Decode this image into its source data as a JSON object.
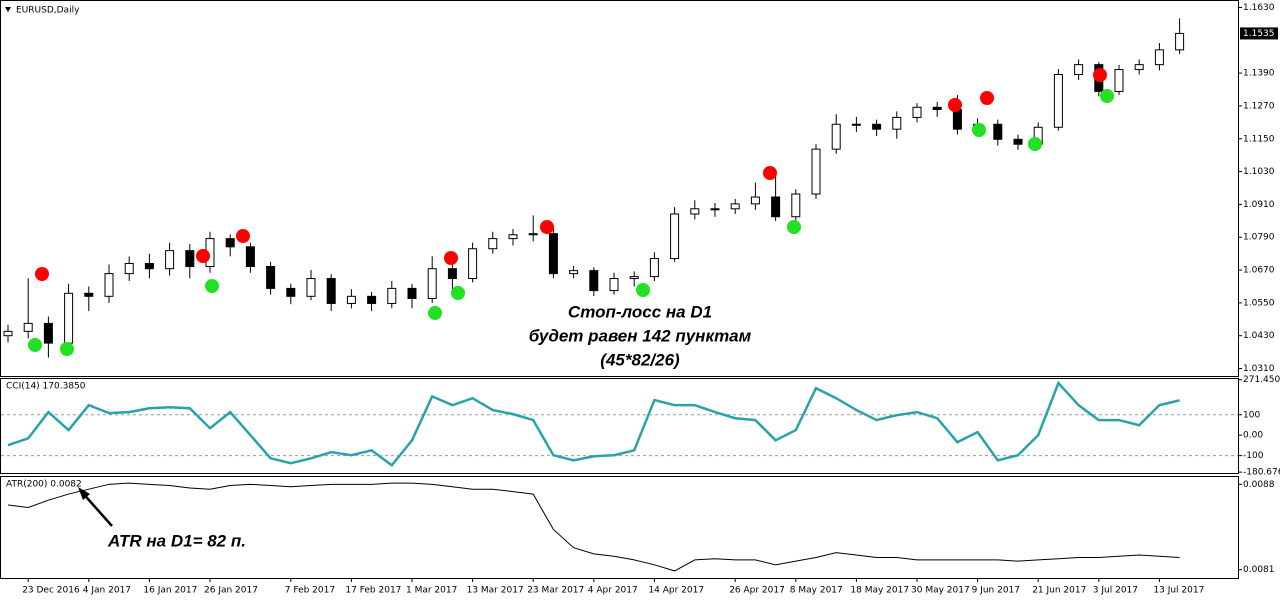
{
  "chart_data": [
    {
      "type": "candlestick",
      "title": "EURUSD,Daily",
      "categories": [
        null,
        "23 Dec 2016",
        null,
        null,
        "4 Jan 2017",
        null,
        null,
        "16 Jan 2017",
        null,
        null,
        "26 Jan 2017",
        null,
        null,
        null,
        "7 Feb 2017",
        null,
        null,
        "17 Feb 2017",
        null,
        null,
        "1 Mar 2017",
        null,
        null,
        "13 Mar 2017",
        null,
        null,
        "23 Mar 2017",
        null,
        null,
        "4 Apr 2017",
        null,
        null,
        "14 Apr 2017",
        null,
        null,
        null,
        "26 Apr 2017",
        null,
        null,
        "8 May 2017",
        null,
        null,
        "18 May 2017",
        null,
        null,
        "30 May 2017",
        null,
        null,
        "9 Jun 2017",
        null,
        null,
        "21 Jun 2017",
        null,
        null,
        "3 Jul 2017",
        null,
        null,
        "13 Jul 2017",
        null
      ],
      "open": [
        1.043,
        1.0446,
        1.0475,
        1.0403,
        1.0585,
        1.0574,
        1.0657,
        1.0694,
        1.0675,
        1.0741,
        1.0683,
        1.0785,
        1.0755,
        1.0683,
        1.0603,
        1.0574,
        1.0639,
        1.0548,
        1.0574,
        1.0548,
        1.0603,
        1.0566,
        1.0675,
        1.0639,
        1.0748,
        1.0785,
        1.0799,
        1.0803,
        1.0657,
        1.0668,
        1.0595,
        1.0639,
        1.0646,
        1.0712,
        1.0875,
        1.0894,
        1.0894,
        1.0912,
        1.0937,
        1.0865,
        1.0948,
        1.1112,
        1.1203,
        1.1203,
        1.1185,
        1.1228,
        1.1265,
        1.1257,
        1.1185,
        1.1203,
        1.1148,
        1.113,
        1.1192,
        1.1385,
        1.1421,
        1.1323,
        1.1403,
        1.1421,
        1.1475
      ],
      "high": [
        1.047,
        1.064,
        1.05,
        1.062,
        1.061,
        1.069,
        1.072,
        1.073,
        1.077,
        1.0765,
        1.081,
        1.08,
        1.077,
        1.07,
        1.062,
        1.067,
        1.0655,
        1.06,
        1.059,
        1.063,
        1.062,
        1.072,
        1.069,
        1.077,
        1.081,
        1.082,
        1.087,
        1.0825,
        1.0685,
        1.068,
        1.066,
        1.0665,
        1.0735,
        1.09,
        1.0925,
        1.0915,
        1.093,
        1.099,
        1.102,
        1.0965,
        1.113,
        1.124,
        1.123,
        1.122,
        1.125,
        1.128,
        1.1285,
        1.131,
        1.1225,
        1.122,
        1.1165,
        1.121,
        1.1405,
        1.144,
        1.143,
        1.142,
        1.144,
        1.15,
        1.159
      ],
      "low": [
        1.0405,
        1.042,
        1.035,
        1.039,
        1.052,
        1.055,
        1.063,
        1.064,
        1.065,
        1.064,
        1.066,
        1.072,
        1.066,
        1.058,
        1.0545,
        1.056,
        1.052,
        1.053,
        1.052,
        1.053,
        1.053,
        1.055,
        1.06,
        1.0625,
        1.073,
        1.076,
        1.0775,
        1.064,
        1.064,
        1.0575,
        1.058,
        1.061,
        1.063,
        1.07,
        1.0855,
        1.0865,
        1.0875,
        1.089,
        1.085,
        1.085,
        1.093,
        1.1095,
        1.1175,
        1.116,
        1.115,
        1.121,
        1.123,
        1.1165,
        1.1165,
        1.1125,
        1.111,
        1.1115,
        1.118,
        1.1365,
        1.1305,
        1.131,
        1.1385,
        1.14,
        1.146
      ],
      "close": [
        1.0446,
        1.0475,
        1.0403,
        1.0585,
        1.0574,
        1.0657,
        1.0694,
        1.0675,
        1.0741,
        1.0683,
        1.0785,
        1.0755,
        1.0683,
        1.0603,
        1.0574,
        1.0639,
        1.0548,
        1.0574,
        1.0548,
        1.0603,
        1.0566,
        1.0675,
        1.0639,
        1.0748,
        1.0785,
        1.0799,
        1.0803,
        1.0657,
        1.0668,
        1.0595,
        1.0639,
        1.0646,
        1.0712,
        1.0875,
        1.0894,
        1.0894,
        1.0912,
        1.0937,
        1.0865,
        1.0948,
        1.1112,
        1.1203,
        1.1203,
        1.1185,
        1.1228,
        1.1265,
        1.1257,
        1.1185,
        1.1203,
        1.1148,
        1.113,
        1.1192,
        1.1385,
        1.1421,
        1.1323,
        1.1403,
        1.1421,
        1.1475,
        1.1535
      ],
      "up_color": "#ffffff",
      "down_color": "#000000",
      "ylim": [
        1.029,
        1.165
      ],
      "yticks": [
        {
          "value": 1.163,
          "label": "1.1630"
        },
        {
          "value": 1.139,
          "label": "1.1390"
        },
        {
          "value": 1.127,
          "label": "1.1270"
        },
        {
          "value": 1.115,
          "label": "1.1150"
        },
        {
          "value": 1.103,
          "label": "1.1030"
        },
        {
          "value": 1.091,
          "label": "1.0910"
        },
        {
          "value": 1.079,
          "label": "1.0790"
        },
        {
          "value": 1.067,
          "label": "1.0670"
        },
        {
          "value": 1.055,
          "label": "1.0550"
        },
        {
          "value": 1.043,
          "label": "1.0430"
        },
        {
          "value": 1.031,
          "label": "1.0310"
        }
      ],
      "last_price": 1.1535,
      "annotations": [
        "Стоп-лосс на D1",
        "будет равен 142 пунктам",
        "(45*82/26)"
      ]
    },
    {
      "type": "line",
      "title": "CCI(14) 170.3850",
      "color": "#2aa3a8",
      "values": [
        -49,
        -15,
        113,
        25,
        147,
        108,
        113,
        132,
        137,
        132,
        34,
        113,
        0,
        -113,
        -137,
        -113,
        -83,
        -98,
        -74,
        -147,
        -25,
        190,
        147,
        181,
        123,
        103,
        74,
        -98,
        -123,
        -103,
        -98,
        -74,
        172,
        147,
        147,
        113,
        83,
        74,
        -25,
        25,
        230,
        181,
        123,
        74,
        98,
        113,
        83,
        -34,
        15,
        -123,
        -98,
        0,
        255,
        147,
        74,
        74,
        49,
        147,
        170.385
      ],
      "ylim": [
        -185,
        275
      ],
      "yticks": [
        271.4503,
        100,
        {
          "value": 0,
          "label": "0.00"
        },
        -100,
        -180.676
      ],
      "level_lines": [
        100,
        -100
      ]
    },
    {
      "type": "line",
      "title": "ATR(200) 0.0082",
      "color": "#000000",
      "values": [
        0.00863,
        0.00861,
        0.00867,
        0.00872,
        0.00876,
        0.0088,
        0.00881,
        0.0088,
        0.00879,
        0.00877,
        0.00876,
        0.00879,
        0.0088,
        0.00879,
        0.00878,
        0.00879,
        0.0088,
        0.0088,
        0.0088,
        0.00881,
        0.00881,
        0.0088,
        0.00878,
        0.00876,
        0.00876,
        0.00874,
        0.00872,
        0.00843,
        0.00828,
        0.00823,
        0.00821,
        0.00818,
        0.00814,
        0.00809,
        0.00818,
        0.00819,
        0.00818,
        0.00818,
        0.00814,
        0.00817,
        0.0082,
        0.00824,
        0.00822,
        0.0082,
        0.0082,
        0.00818,
        0.00818,
        0.00818,
        0.00818,
        0.00818,
        0.00817,
        0.00818,
        0.00819,
        0.0082,
        0.0082,
        0.00821,
        0.00822,
        0.00821,
        0.0082
      ],
      "ylim": [
        0.00804,
        0.00886
      ],
      "yticks": [
        0.0088,
        0.0081
      ],
      "annotations": [
        "ATR на D1= 82 п."
      ]
    }
  ]
}
